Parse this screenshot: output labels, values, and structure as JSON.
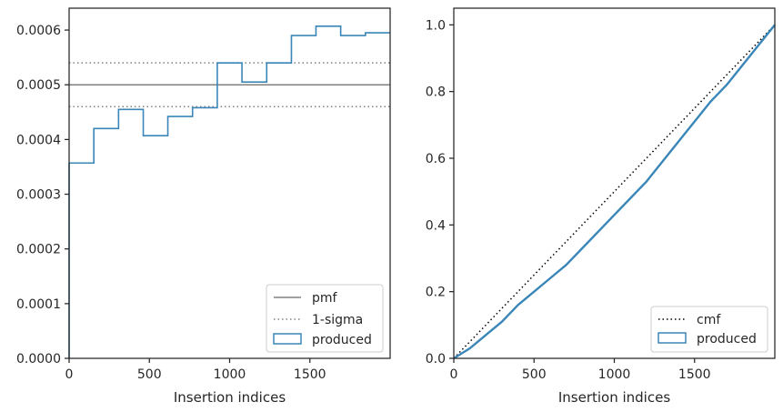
{
  "chart_data": [
    {
      "type": "step",
      "xlabel": "Insertion indices",
      "ylabel": "",
      "xlim": [
        0,
        2000
      ],
      "ylim": [
        0,
        0.00064
      ],
      "xticks": [
        0,
        500,
        1000,
        1500
      ],
      "xtick_labels": [
        "0",
        "500",
        "1000",
        "1500"
      ],
      "yticks": [
        0,
        0.0001,
        0.0002,
        0.0003,
        0.0004,
        0.0005,
        0.0006
      ],
      "ytick_labels": [
        "0.0000",
        "0.0001",
        "0.0002",
        "0.0003",
        "0.0004",
        "0.0005",
        "0.0006"
      ],
      "grid": false,
      "legend_position": "lower-right",
      "legend": [
        "pmf",
        "1-sigma",
        "produced"
      ],
      "pmf": 0.0005,
      "sigma_band": [
        0.00046,
        0.00054
      ],
      "bin_edges": [
        0,
        154,
        308,
        462,
        615,
        769,
        923,
        1077,
        1231,
        1385,
        1538,
        1692,
        1846,
        2000
      ],
      "produced": [
        0.000357,
        0.00042,
        0.000455,
        0.000407,
        0.000442,
        0.000458,
        0.00054,
        0.000505,
        0.00054,
        0.00059,
        0.000607,
        0.00059,
        0.000595
      ],
      "colors": {
        "pmf": "#808080",
        "sigma": "#808080",
        "produced": "#3a86b8"
      }
    },
    {
      "type": "line",
      "xlabel": "Insertion indices",
      "ylabel": "",
      "xlim": [
        0,
        2000
      ],
      "ylim": [
        0,
        1.05
      ],
      "xticks": [
        0,
        500,
        1000,
        1500
      ],
      "xtick_labels": [
        "0",
        "500",
        "1000",
        "1500"
      ],
      "yticks": [
        0,
        0.2,
        0.4,
        0.6,
        0.8,
        1.0
      ],
      "ytick_labels": [
        "0.0",
        "0.2",
        "0.4",
        "0.6",
        "0.8",
        "1.0"
      ],
      "grid": false,
      "legend_position": "lower-right",
      "legend": [
        "cmf",
        "produced"
      ],
      "cmf": {
        "x": [
          0,
          2000
        ],
        "y": [
          0,
          1.0
        ]
      },
      "produced": {
        "x": [
          0,
          100,
          200,
          300,
          400,
          500,
          600,
          700,
          800,
          900,
          1000,
          1100,
          1200,
          1300,
          1400,
          1500,
          1600,
          1700,
          1800,
          1900,
          2000
        ],
        "y": [
          0,
          0.03,
          0.07,
          0.11,
          0.16,
          0.2,
          0.24,
          0.28,
          0.33,
          0.38,
          0.43,
          0.48,
          0.53,
          0.59,
          0.65,
          0.71,
          0.77,
          0.82,
          0.88,
          0.94,
          1.0
        ]
      },
      "colors": {
        "cmf": "#000000",
        "produced": "#3a86b8"
      }
    }
  ]
}
